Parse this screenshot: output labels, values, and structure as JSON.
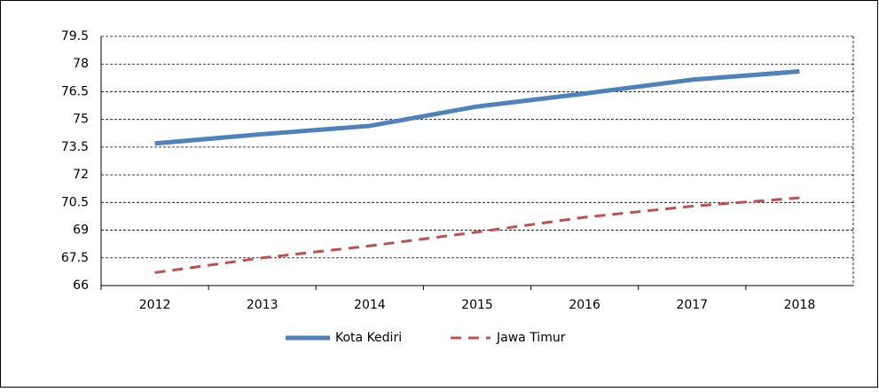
{
  "chart_data": {
    "type": "line",
    "categories": [
      "2012",
      "2013",
      "2014",
      "2015",
      "2016",
      "2017",
      "2018"
    ],
    "series": [
      {
        "name": "Kota Kediri",
        "color": "#4f81bd",
        "values": [
          73.7,
          74.2,
          74.65,
          75.7,
          76.4,
          77.15,
          77.6
        ]
      },
      {
        "name": "Jawa Timur",
        "color": "#c0504d",
        "dashed": true,
        "values": [
          66.7,
          67.5,
          68.15,
          68.9,
          69.7,
          70.3,
          70.75
        ]
      }
    ],
    "ylim": [
      66,
      79.5
    ],
    "yticks": [
      66,
      67.5,
      69,
      70.5,
      72,
      73.5,
      75,
      76.5,
      78,
      79.5
    ],
    "grid": true,
    "legend": "bottom"
  }
}
